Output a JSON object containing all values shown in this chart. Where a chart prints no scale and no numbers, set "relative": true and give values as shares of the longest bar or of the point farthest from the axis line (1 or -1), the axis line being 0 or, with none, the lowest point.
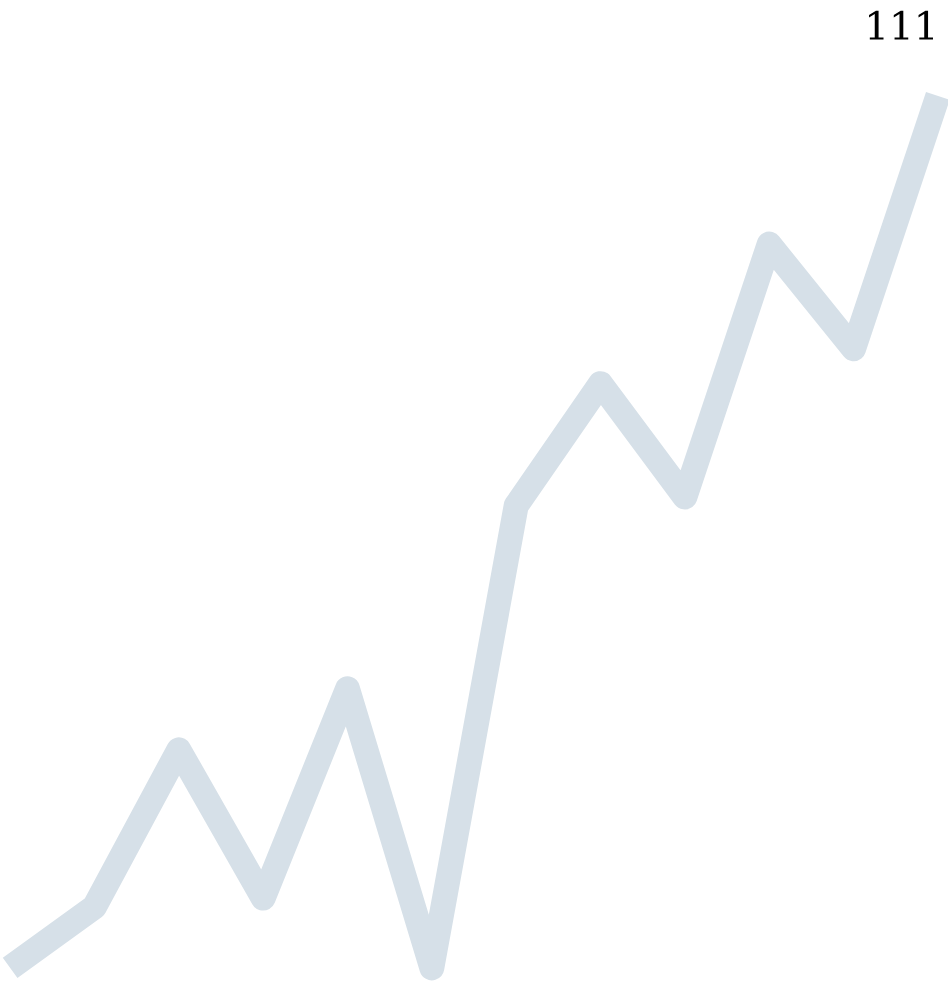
{
  "chart_data": {
    "type": "line",
    "relative": true,
    "categories": [
      null,
      null,
      null,
      null,
      null,
      null,
      null,
      null,
      null,
      null,
      null,
      null
    ],
    "series": [
      {
        "color": "#d6e0e8",
        "values": [
          0.0,
          0.07,
          0.25,
          0.08,
          0.32,
          0.0,
          0.53,
          0.67,
          0.54,
          0.83,
          0.71,
          1.0
        ]
      }
    ],
    "annotations": [
      "111"
    ],
    "marker": "none",
    "line_style": "solid",
    "legend": false
  }
}
